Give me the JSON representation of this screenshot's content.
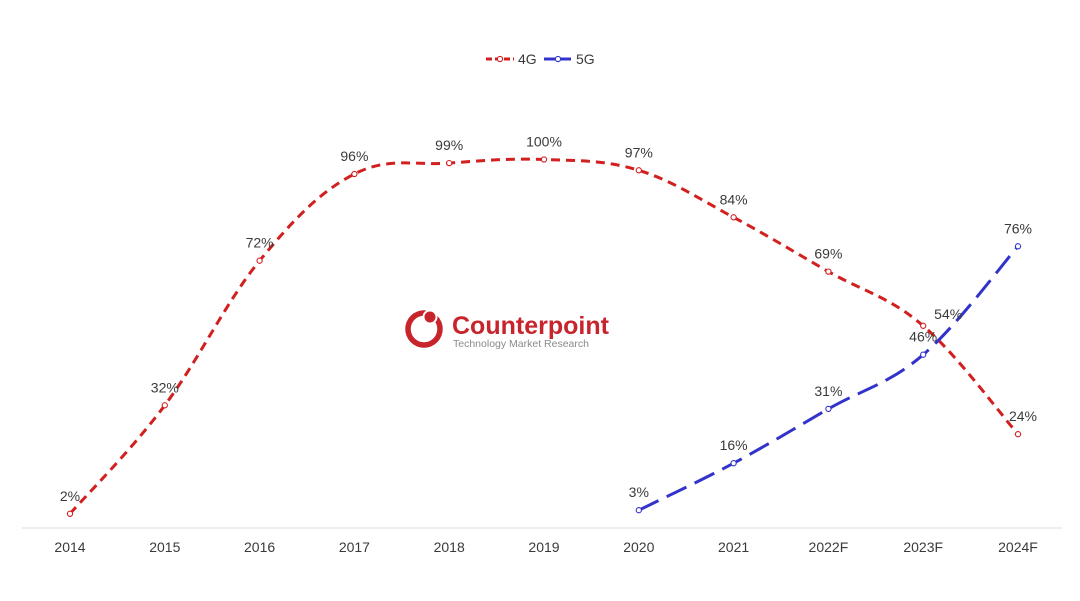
{
  "legend": {
    "position": "top-center",
    "items": [
      "4G",
      "5G"
    ]
  },
  "watermark": {
    "name": "Counterpoint",
    "tagline": "Technology Market Research"
  },
  "colors": {
    "series_4g": "#d21f1f",
    "series_5g": "#3333cc",
    "axis": "#dddddd",
    "text": "#3a3a3a",
    "logo": "#c8242b",
    "logo_tagline": "#8a8a8a"
  },
  "chart_data": {
    "type": "line",
    "categories": [
      "2014",
      "2015",
      "2016",
      "2017",
      "2018",
      "2019",
      "2020",
      "2021",
      "2022F",
      "2023F",
      "2024F"
    ],
    "series": [
      {
        "name": "4G",
        "values": [
          2,
          32,
          72,
          96,
          99,
          100,
          97,
          84,
          69,
          54,
          24
        ],
        "labels": [
          "2%",
          "32%",
          "72%",
          "96%",
          "99%",
          "100%",
          "97%",
          "84%",
          "69%",
          "54%",
          "24%"
        ],
        "color": "#d21f1f",
        "line_style": "dashed"
      },
      {
        "name": "5G",
        "values": [
          null,
          null,
          null,
          null,
          null,
          null,
          3,
          16,
          31,
          46,
          76
        ],
        "labels": [
          null,
          null,
          null,
          null,
          null,
          null,
          "3%",
          "16%",
          "31%",
          "46%",
          "76%"
        ],
        "color": "#3333cc",
        "line_style": "long-dashed"
      }
    ],
    "xlabel": "",
    "ylabel": "",
    "ylim": [
      0,
      100
    ],
    "grid": false,
    "legend": "top-center"
  }
}
